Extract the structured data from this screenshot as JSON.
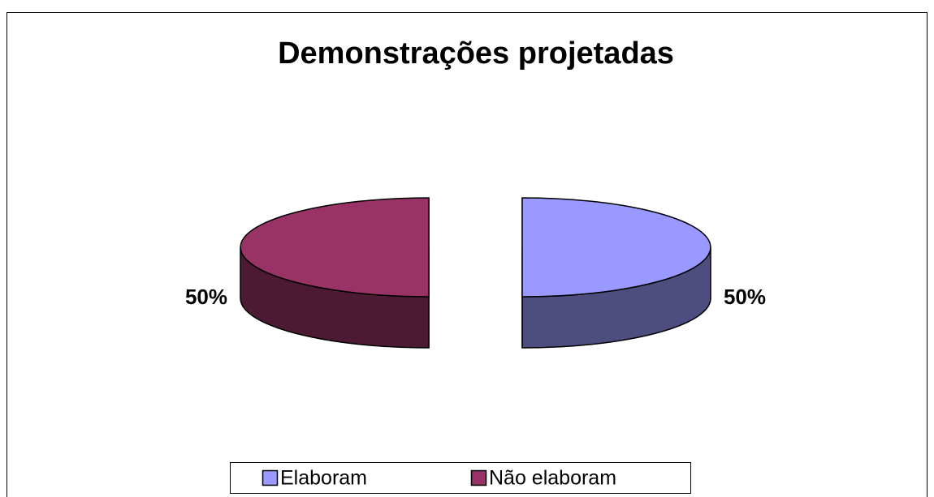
{
  "chart_data": {
    "type": "pie",
    "title": "Demonstrações projetadas",
    "categories": [
      "Elaboram",
      "Não elaboram"
    ],
    "values": [
      50,
      50
    ],
    "value_labels": [
      "50%",
      "50%"
    ],
    "colors": [
      "#9999ff",
      "#993366"
    ],
    "legend": "bottom"
  }
}
